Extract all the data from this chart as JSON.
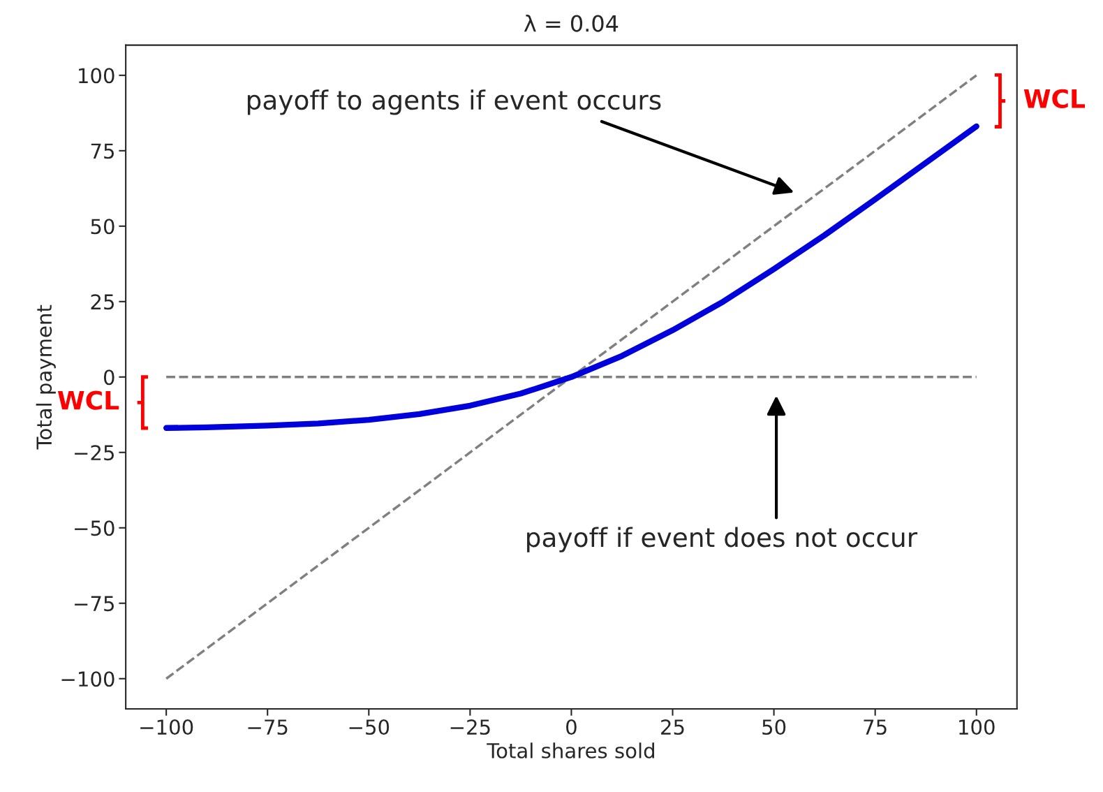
{
  "chart_data": {
    "type": "line",
    "title": "λ = 0.04",
    "xlabel": "Total shares sold",
    "ylabel": "Total payment",
    "xlim": [
      -110,
      110
    ],
    "ylim": [
      -110,
      110
    ],
    "xticks": [
      {
        "value": -100,
        "label": "−100"
      },
      {
        "value": -75,
        "label": "−75"
      },
      {
        "value": -50,
        "label": "−50"
      },
      {
        "value": -25,
        "label": "−25"
      },
      0,
      25,
      50,
      75,
      100
    ],
    "yticks": [
      {
        "value": -100,
        "label": "−100"
      },
      {
        "value": -75,
        "label": "−75"
      },
      {
        "value": -50,
        "label": "−50"
      },
      {
        "value": -25,
        "label": "−25"
      },
      0,
      25,
      50,
      75,
      100
    ],
    "grid": false,
    "series": [
      {
        "color": "#808080",
        "line_style": "dashed",
        "x": [
          -100,
          100
        ],
        "values": [
          -100,
          100
        ]
      },
      {
        "color": "#808080",
        "line_style": "dashed",
        "x": [
          -100,
          100
        ],
        "values": [
          0,
          0
        ]
      },
      {
        "color": "#0000dd",
        "line_style": "solid",
        "x": [
          -100,
          -90,
          -75,
          -62.5,
          -50,
          -37.5,
          -25,
          -12.5,
          0,
          12.5,
          25,
          37.5,
          50,
          62.5,
          75,
          87.5,
          100
        ],
        "values": [
          -16.9,
          -16.7,
          -16.1,
          -15.4,
          -14.2,
          -12.3,
          -9.5,
          -5.5,
          0,
          7,
          15.5,
          25,
          35.8,
          47,
          58.9,
          71,
          83.1
        ]
      }
    ],
    "annotations": [
      "payoff to agents if event occurs",
      "payoff if event does not occur",
      "WCL",
      "WCL"
    ]
  }
}
